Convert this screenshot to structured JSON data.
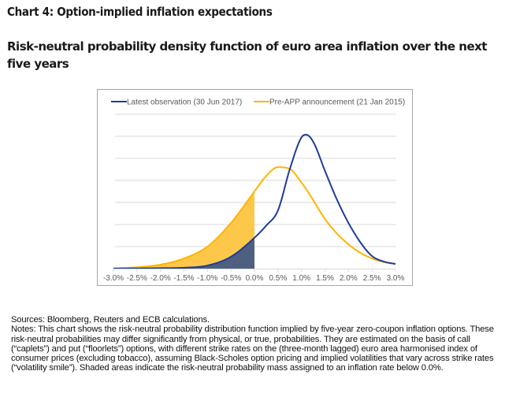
{
  "header": {
    "title": "Chart 4: Option-implied inflation expectations",
    "subtitle": "Risk-neutral probability density function of euro area inflation over the next five years"
  },
  "chart_data": {
    "type": "line",
    "title": "Risk-neutral probability density function of euro area inflation over the next five years",
    "xlabel": "",
    "ylabel": "",
    "xlim": [
      -3.0,
      3.0
    ],
    "ylim": [
      0,
      7
    ],
    "grid": true,
    "y_tick_labels_shown": false,
    "legend_position": "top",
    "x_tick_labels": [
      "-3.0%",
      "-2.5%",
      "-2.0%",
      "-1.5%",
      "-1.0%",
      "-0.5%",
      "0.0%",
      "0.5%",
      "1.0%",
      "1.5%",
      "2.0%",
      "2.5%",
      "3.0%"
    ],
    "x": [
      -3.0,
      -2.5,
      -2.0,
      -1.5,
      -1.0,
      -0.5,
      0.0,
      0.25,
      0.5,
      0.75,
      1.0,
      1.1,
      1.25,
      1.5,
      1.75,
      2.0,
      2.25,
      2.5,
      2.75,
      3.0
    ],
    "series": [
      {
        "name": "Latest observation (30 Jun 2017)",
        "color": "#1F3C99",
        "fill_color": "#4E5F80",
        "values": [
          0.0,
          0.01,
          0.02,
          0.04,
          0.14,
          0.54,
          1.4,
          1.95,
          2.64,
          4.5,
          5.95,
          6.07,
          5.75,
          4.43,
          3.15,
          2.07,
          1.2,
          0.57,
          0.32,
          0.21
        ]
      },
      {
        "name": "Pre-APP announcement (21 Jan 2015)",
        "color": "#FFB400",
        "fill_color": "#FDC84A",
        "values": [
          0.02,
          0.06,
          0.18,
          0.46,
          1.0,
          2.07,
          3.5,
          4.2,
          4.6,
          4.52,
          3.9,
          3.6,
          3.1,
          2.25,
          1.6,
          1.1,
          0.72,
          0.46,
          0.3,
          0.21
        ]
      }
    ],
    "shaded_region": {
      "from": -3.0,
      "to": 0.0,
      "description": "probability mass below 0.0%"
    }
  },
  "footnotes": {
    "sources": "Sources: Bloomberg, Reuters and ECB calculations.",
    "notes": "Notes: This chart shows the risk-neutral probability distribution function implied by five-year zero-coupon inflation options. These risk-neutral probabilities may differ significantly from physical, or true, probabilities. They are estimated on the basis of call (“caplets”) and put (“floorlets”) options, with different strike rates on the (three-month lagged) euro area harmonised index of consumer prices (excluding tobacco), assuming Black-Scholes option pricing and implied volatilities that vary across strike rates (“volatility smile”). Shaded areas indicate the risk-neutral probability mass assigned to an inflation rate below 0.0%."
  }
}
